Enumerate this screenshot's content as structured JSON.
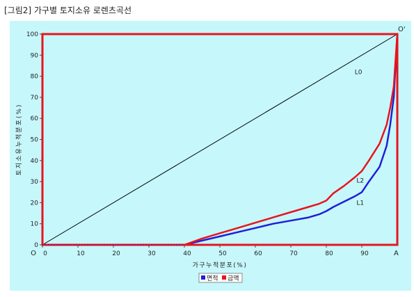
{
  "page_title": "[그림2] 가구별 토지소유 로렌츠곡선",
  "chart_data": {
    "type": "line",
    "title": "[그림2] 가구별 토지소유 로렌츠곡선",
    "xlabel": "가구누적분포(%)",
    "ylabel": "토지소유누적분포(%)",
    "xlim": [
      0,
      100
    ],
    "ylim": [
      0,
      100
    ],
    "x_ticks": [
      "0",
      "10",
      "20",
      "30",
      "40",
      "50",
      "60",
      "70",
      "80",
      "90"
    ],
    "y_ticks": [
      "0",
      "10",
      "20",
      "30",
      "40",
      "50",
      "60",
      "70",
      "80",
      "90",
      "100"
    ],
    "grid": false,
    "legend_position": "bottom-center",
    "corner_labels": {
      "origin": "O",
      "top_right": "O'",
      "bottom_right": "A"
    },
    "series": [
      {
        "name": "L0",
        "color": "#000000",
        "x": [
          0,
          100
        ],
        "y": [
          0,
          100
        ]
      },
      {
        "name": "면적",
        "label": "L1",
        "color": "#1f1fd6",
        "x": [
          0,
          40,
          45,
          50,
          55,
          60,
          65,
          70,
          75,
          78,
          80,
          82,
          85,
          88,
          90,
          92,
          95,
          97,
          98,
          99,
          99.5,
          100
        ],
        "y": [
          0,
          0,
          2,
          4,
          6,
          8,
          10,
          11.5,
          13,
          14.5,
          16,
          18,
          20.5,
          23,
          25,
          30,
          37,
          47,
          57,
          70,
          85,
          100
        ]
      },
      {
        "name": "금액",
        "label": "L2",
        "color": "#e8141c",
        "x": [
          0,
          40,
          45,
          50,
          55,
          60,
          65,
          70,
          75,
          78,
          80,
          82,
          85,
          88,
          90,
          92,
          95,
          97,
          98,
          99,
          99.5,
          100
        ],
        "y": [
          0,
          0,
          3,
          5.5,
          8,
          10.5,
          13,
          15.5,
          18,
          19.5,
          21,
          24.5,
          28,
          32,
          35,
          40,
          48,
          57,
          65,
          75,
          88,
          100
        ]
      }
    ],
    "frame_color": "#e8141c"
  }
}
